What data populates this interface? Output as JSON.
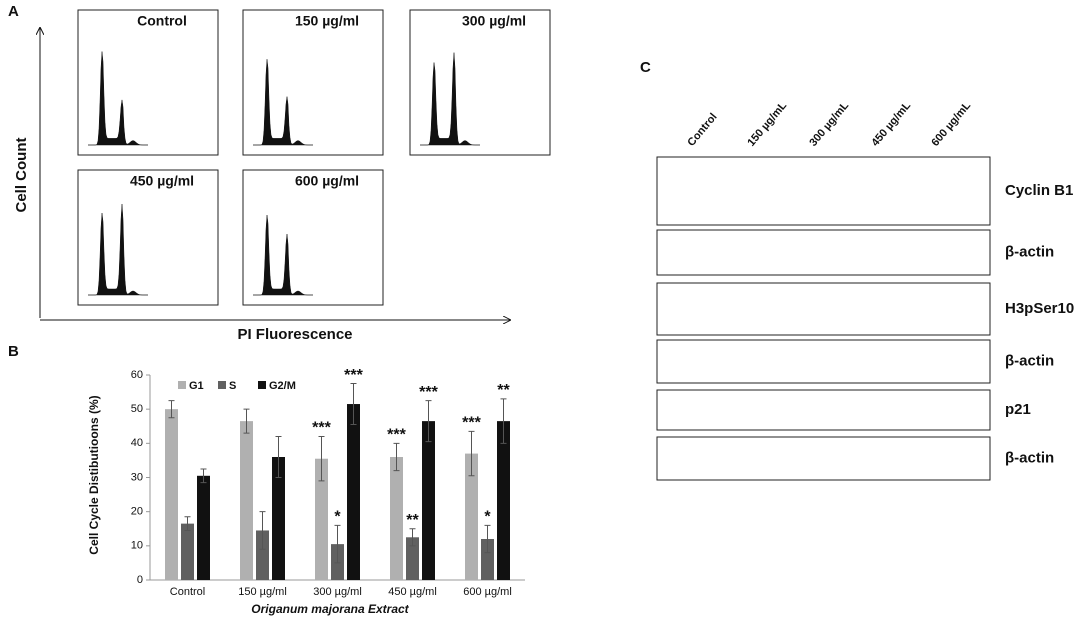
{
  "chart_data": {
    "type": "bar",
    "panel_label": "B",
    "ylabel": "Cell Cycle Distibutioons (%)",
    "xlabel": "Origanum majorana Extract",
    "categories": [
      "Control",
      "150 µg/ml",
      "300 µg/ml",
      "450 µg/ml",
      "600 µg/ml"
    ],
    "ylim": [
      0,
      60
    ],
    "yticks": [
      0,
      10,
      20,
      30,
      40,
      50,
      60
    ],
    "series": [
      {
        "name": "G1",
        "color": "#b0b0b0",
        "values": [
          50,
          46.5,
          35.5,
          36,
          37
        ],
        "errors": [
          2.5,
          3.5,
          6.5,
          4,
          6.5
        ],
        "annotations": [
          null,
          null,
          "***",
          "***",
          "***"
        ]
      },
      {
        "name": "S",
        "color": "#606060",
        "values": [
          16.5,
          14.5,
          10.5,
          12.5,
          12
        ],
        "errors": [
          2,
          5.5,
          5.5,
          2.5,
          4
        ],
        "annotations": [
          null,
          null,
          "*",
          "**",
          "*"
        ]
      },
      {
        "name": "G2/M",
        "color": "#111111",
        "values": [
          30.5,
          36,
          51.5,
          46.5,
          46.5
        ],
        "errors": [
          2,
          6,
          6,
          6,
          6.5
        ],
        "annotations": [
          null,
          null,
          "***",
          "***",
          "**"
        ]
      }
    ]
  },
  "flow_panel": {
    "panel_label": "A",
    "ylabel": "Cell Count",
    "xlabel": "PI Fluorescence",
    "titles": [
      "Control",
      "150 µg/ml",
      "300 µg/ml",
      "450 µg/ml",
      "600 µg/ml"
    ]
  },
  "blot_panel": {
    "panel_label": "C",
    "columns": [
      "Control",
      "150 µg/mL",
      "300 µg/mL",
      "450 µg/mL",
      "600 µg/mL"
    ],
    "rows": [
      "Cyclin B1",
      "β-actin",
      "H3pSer10",
      "β-actin",
      "p21",
      "β-actin"
    ]
  }
}
